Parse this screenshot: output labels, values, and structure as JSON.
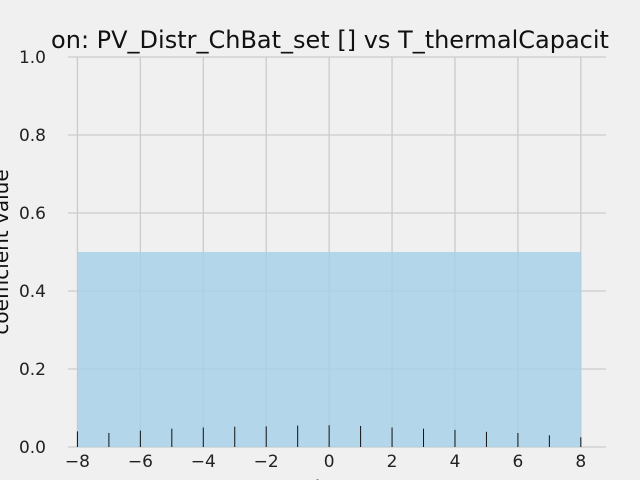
{
  "chart_data": {
    "type": "area",
    "title": "on: PV_Distr_ChBat_set [] vs T_thermalCapacit",
    "xlabel": "lag",
    "ylabel": "coefficient value",
    "xlim": [
      -8.3,
      8.8
    ],
    "ylim": [
      0,
      1.0
    ],
    "x_ticks": [
      -8,
      -6,
      -4,
      -2,
      0,
      2,
      4,
      6,
      8
    ],
    "x_tick_labels": [
      "−8",
      "−6",
      "−4",
      "−2",
      "0",
      "2",
      "4",
      "6",
      "8"
    ],
    "y_ticks": [
      0.0,
      0.2,
      0.4,
      0.6,
      0.8,
      1.0
    ],
    "y_tick_labels": [
      "0.0",
      "0.2",
      "0.4",
      "0.6",
      "0.8",
      "1.0"
    ],
    "grid": true,
    "band": {
      "x": [
        -8,
        8
      ],
      "y_low": 0,
      "y_high": 0.5,
      "color": "#a6d0e8"
    },
    "stems": {
      "lags": [
        -8,
        -7,
        -6,
        -5,
        -4,
        -3,
        -2,
        -1,
        0,
        1,
        2,
        3,
        4,
        5,
        6,
        7,
        8
      ],
      "values": [
        0.04,
        0.036,
        0.042,
        0.047,
        0.05,
        0.052,
        0.053,
        0.055,
        0.056,
        0.054,
        0.05,
        0.047,
        0.044,
        0.039,
        0.036,
        0.03,
        0.025
      ],
      "color": "#111111"
    }
  }
}
